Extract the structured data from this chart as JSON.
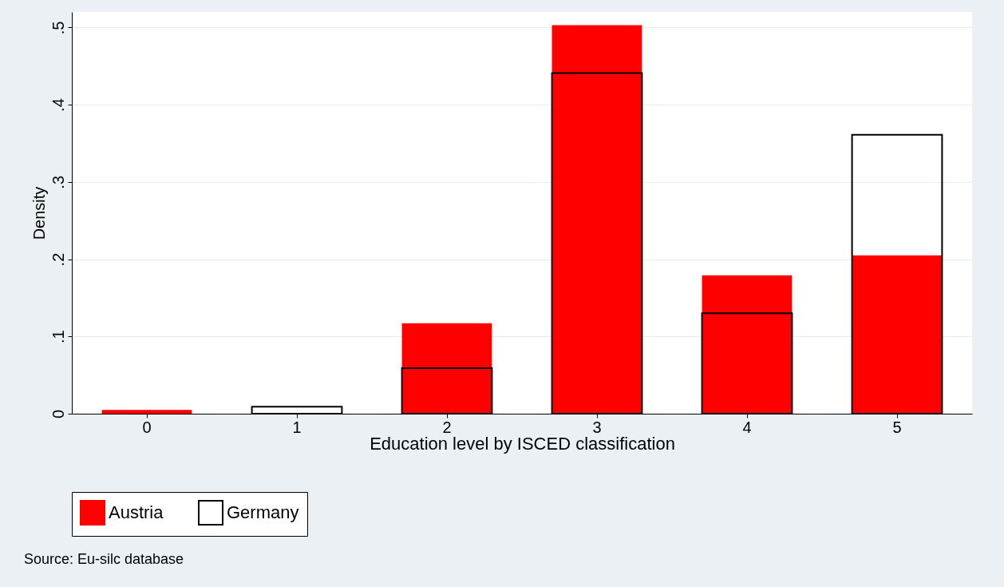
{
  "chart_data": {
    "type": "bar",
    "xlabel": "Education level by ISCED classification",
    "ylabel": "Density",
    "categories": [
      "0",
      "1",
      "2",
      "3",
      "4",
      "5"
    ],
    "series": [
      {
        "name": "Austria",
        "color": "#ff0000",
        "values": [
          0.005,
          null,
          0.117,
          0.503,
          0.179,
          0.205
        ]
      },
      {
        "name": "Germany",
        "color": "#000000",
        "values": [
          null,
          0.009,
          0.059,
          0.441,
          0.13,
          0.361
        ]
      }
    ],
    "ylim": [
      0,
      0.52
    ],
    "yticks": [
      0,
      {
        "value": 0.1,
        "label": ".1"
      },
      {
        "value": 0.2,
        "label": ".2"
      },
      {
        "value": 0.3,
        "label": ".3"
      },
      {
        "value": 0.4,
        "label": ".4"
      },
      {
        "value": 0.5,
        "label": ".5"
      }
    ],
    "grid": "y",
    "legend": "bottom",
    "annotations": [
      "Source: Eu-silc database"
    ]
  }
}
